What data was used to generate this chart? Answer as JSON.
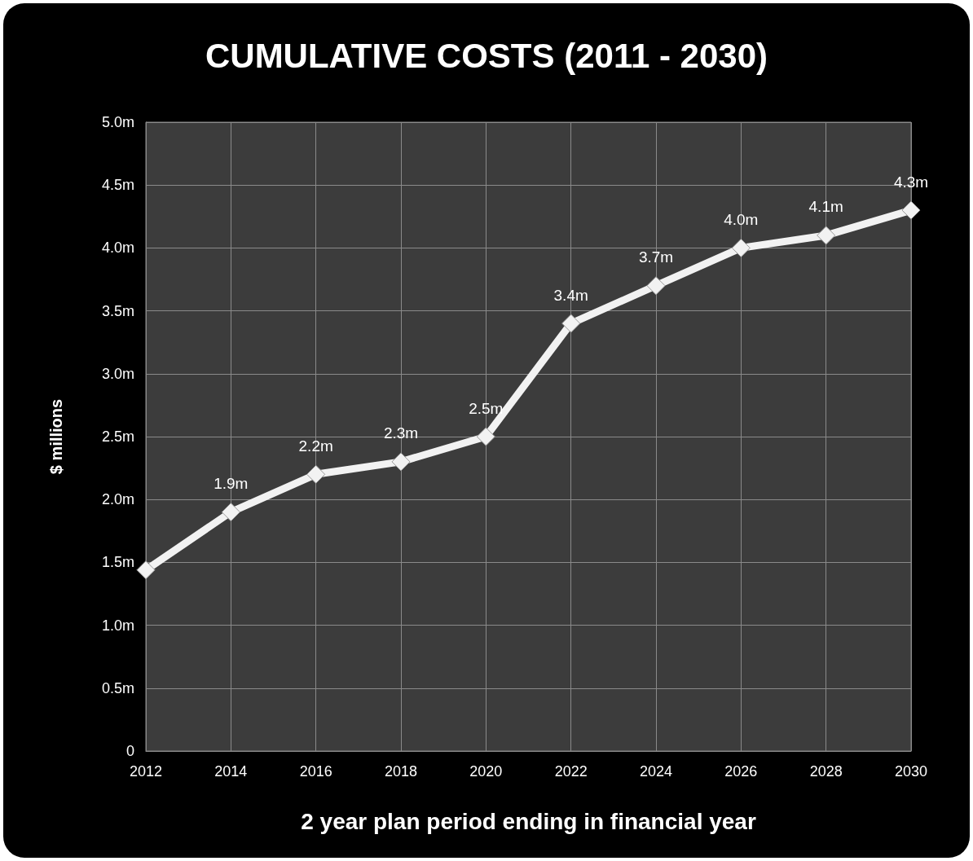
{
  "chart_data": {
    "type": "line",
    "title": "CUMULATIVE COSTS (2011 - 2030)",
    "xlabel": "2 year plan period ending in financial year",
    "ylabel": "$ millions",
    "categories": [
      "2012",
      "2014",
      "2016",
      "2018",
      "2020",
      "2022",
      "2024",
      "2026",
      "2028",
      "2030"
    ],
    "series": [
      {
        "color": "#f2f2f2",
        "values": [
          1.44,
          1.9,
          2.2,
          2.3,
          2.5,
          3.4,
          3.7,
          4.0,
          4.1,
          4.3
        ],
        "value_labels": [
          null,
          "1.9m",
          "2.2m",
          "2.3m",
          "2.5m",
          "3.4m",
          "3.7m",
          "4.0m",
          "4.1m",
          "4.3m"
        ]
      }
    ],
    "ylim": [
      0,
      5
    ],
    "yticks": [
      0,
      {
        "value": 0.5,
        "label": "0.5m"
      },
      {
        "value": 1,
        "label": "1.0m"
      },
      {
        "value": 1.5,
        "label": "1.5m"
      },
      {
        "value": 2,
        "label": "2.0m"
      },
      {
        "value": 2.5,
        "label": "2.5m"
      },
      {
        "value": 3,
        "label": "3.0m"
      },
      {
        "value": 3.5,
        "label": "3.5m"
      },
      {
        "value": 4,
        "label": "4.0m"
      },
      {
        "value": 4.5,
        "label": "4.5m"
      },
      {
        "value": 5,
        "label": "5.0m"
      }
    ],
    "grid": true,
    "marker": "diamond",
    "line_style": "solid"
  }
}
